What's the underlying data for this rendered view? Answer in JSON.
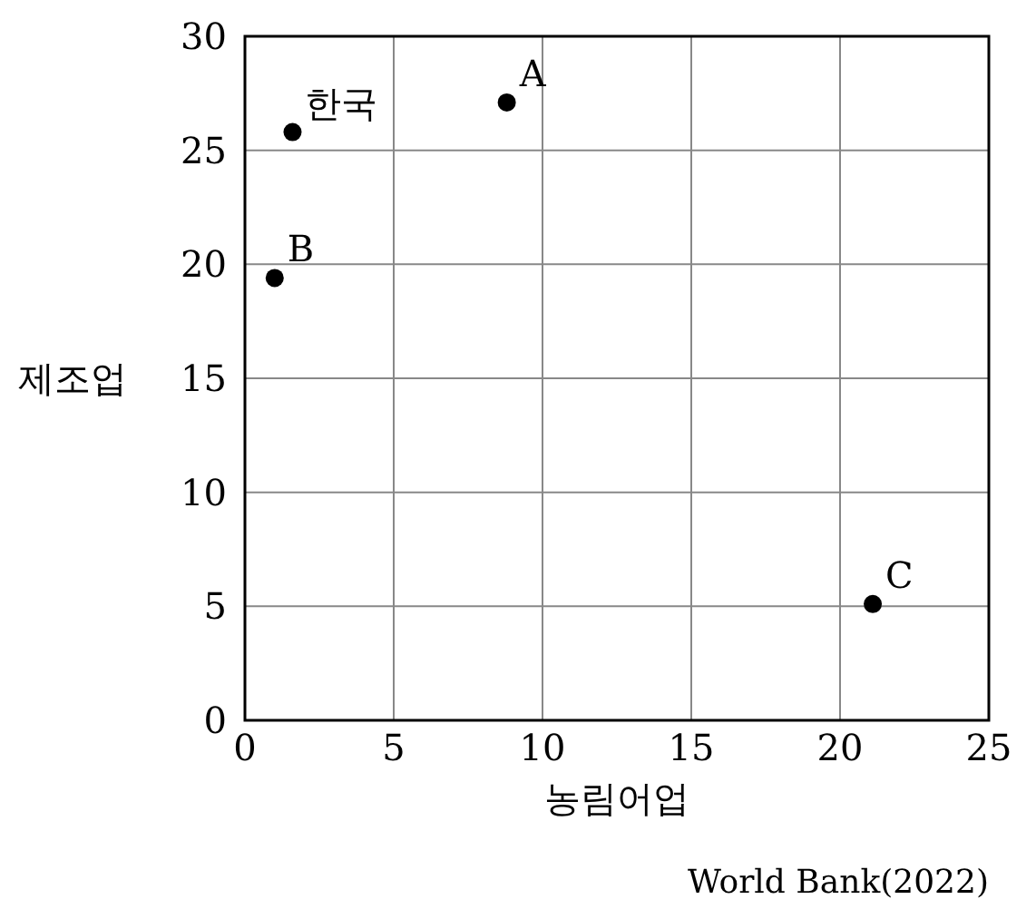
{
  "chart_data": {
    "type": "scatter",
    "xlabel": "농림어업",
    "ylabel": "제조업",
    "xlim": [
      0,
      25
    ],
    "xticks": [
      0,
      5,
      10,
      15,
      20,
      25
    ],
    "ylim": [
      0,
      30
    ],
    "yticks": [
      0,
      5,
      10,
      15,
      20,
      25,
      30
    ],
    "grid": true,
    "marker": "circle",
    "series": [
      {
        "color": "#000000",
        "x": [
          1.6,
          8.8,
          1.0,
          21.1
        ],
        "values": [
          25.8,
          27.1,
          19.4,
          5.1
        ]
      }
    ],
    "annotations": [
      {
        "text": "한국",
        "x": 1.6,
        "y": 25.8
      },
      {
        "text": "A",
        "x": 8.8,
        "y": 27.1
      },
      {
        "text": "B",
        "x": 1.0,
        "y": 19.4
      },
      {
        "text": "C",
        "x": 21.1,
        "y": 5.1
      },
      "World Bank(2022)"
    ]
  }
}
